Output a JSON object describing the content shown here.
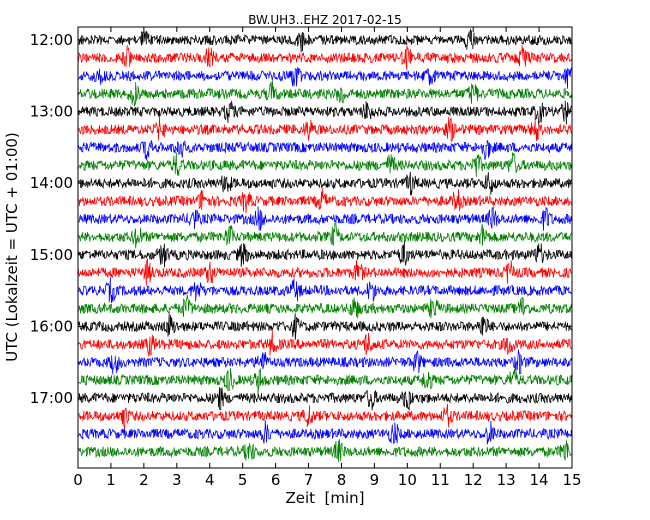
{
  "chart_data": {
    "type": "line",
    "title": "BW.UH3..EHZ 2017-02-15",
    "xlabel": "Zeit  [min]",
    "ylabel": "UTC (Lokalzeit = UTC + 01:00)",
    "xlim": [
      0,
      15
    ],
    "x_ticks": [
      0,
      1,
      2,
      3,
      4,
      5,
      6,
      7,
      8,
      9,
      10,
      11,
      12,
      13,
      14,
      15
    ],
    "x_tick_labels": [
      "0",
      "1",
      "2",
      "3",
      "4",
      "5",
      "6",
      "7",
      "8",
      "9",
      "10",
      "11",
      "12",
      "13",
      "14",
      "15"
    ],
    "y_tick_labels": [
      "12:00",
      "13:00",
      "14:00",
      "15:00",
      "16:00",
      "17:00"
    ],
    "trace_minutes": 15,
    "grid": false,
    "colors": [
      "#000000",
      "#ff0000",
      "#0000ff",
      "#008000"
    ],
    "series": [
      {
        "start": "12:00",
        "events": [
          2.0,
          6.8,
          11.9
        ]
      },
      {
        "start": "12:15",
        "events": [
          1.5,
          4.0,
          10.0,
          13.5
        ]
      },
      {
        "start": "12:30",
        "events": [
          0.7,
          6.6,
          10.7,
          14.9
        ]
      },
      {
        "start": "12:45",
        "events": [
          1.7,
          5.9,
          8.0,
          12.0
        ]
      },
      {
        "start": "13:00",
        "events": [
          4.6,
          8.8,
          14.0,
          14.8
        ]
      },
      {
        "start": "13:15",
        "events": [
          2.5,
          7.0,
          11.3,
          13.9
        ]
      },
      {
        "start": "13:30",
        "events": [
          2.1,
          3.1,
          12.4
        ]
      },
      {
        "start": "13:45",
        "events": [
          3.0,
          9.5,
          12.1,
          13.2
        ]
      },
      {
        "start": "14:00",
        "events": [
          4.5,
          10.1,
          12.5
        ]
      },
      {
        "start": "14:15",
        "events": [
          3.8,
          5.1,
          7.4,
          11.5
        ]
      },
      {
        "start": "14:30",
        "events": [
          3.5,
          5.5,
          12.6,
          14.2
        ]
      },
      {
        "start": "14:45",
        "events": [
          1.8,
          4.6,
          7.8,
          12.3
        ]
      },
      {
        "start": "15:00",
        "events": [
          2.6,
          5.0,
          9.9,
          14.0
        ]
      },
      {
        "start": "15:15",
        "events": [
          2.1,
          4.0,
          8.5,
          13.1
        ]
      },
      {
        "start": "15:30",
        "events": [
          1.0,
          3.6,
          6.6,
          8.9
        ]
      },
      {
        "start": "15:45",
        "events": [
          3.3,
          8.4,
          10.8,
          13.5
        ]
      },
      {
        "start": "16:00",
        "events": [
          2.8,
          6.6,
          12.3
        ]
      },
      {
        "start": "16:15",
        "events": [
          2.2,
          5.9,
          8.8,
          13.1
        ]
      },
      {
        "start": "16:30",
        "events": [
          1.1,
          5.6,
          10.3,
          13.4
        ]
      },
      {
        "start": "16:45",
        "events": [
          4.6,
          5.5,
          10.6,
          13.2
        ]
      },
      {
        "start": "17:00",
        "events": [
          4.3,
          8.9,
          10.0
        ]
      },
      {
        "start": "17:15",
        "events": [
          1.4,
          7.0,
          11.2
        ]
      },
      {
        "start": "17:30",
        "events": [
          5.7,
          9.6,
          12.5
        ]
      },
      {
        "start": "17:45",
        "events": [
          5.2,
          7.9,
          14.8
        ]
      }
    ]
  }
}
